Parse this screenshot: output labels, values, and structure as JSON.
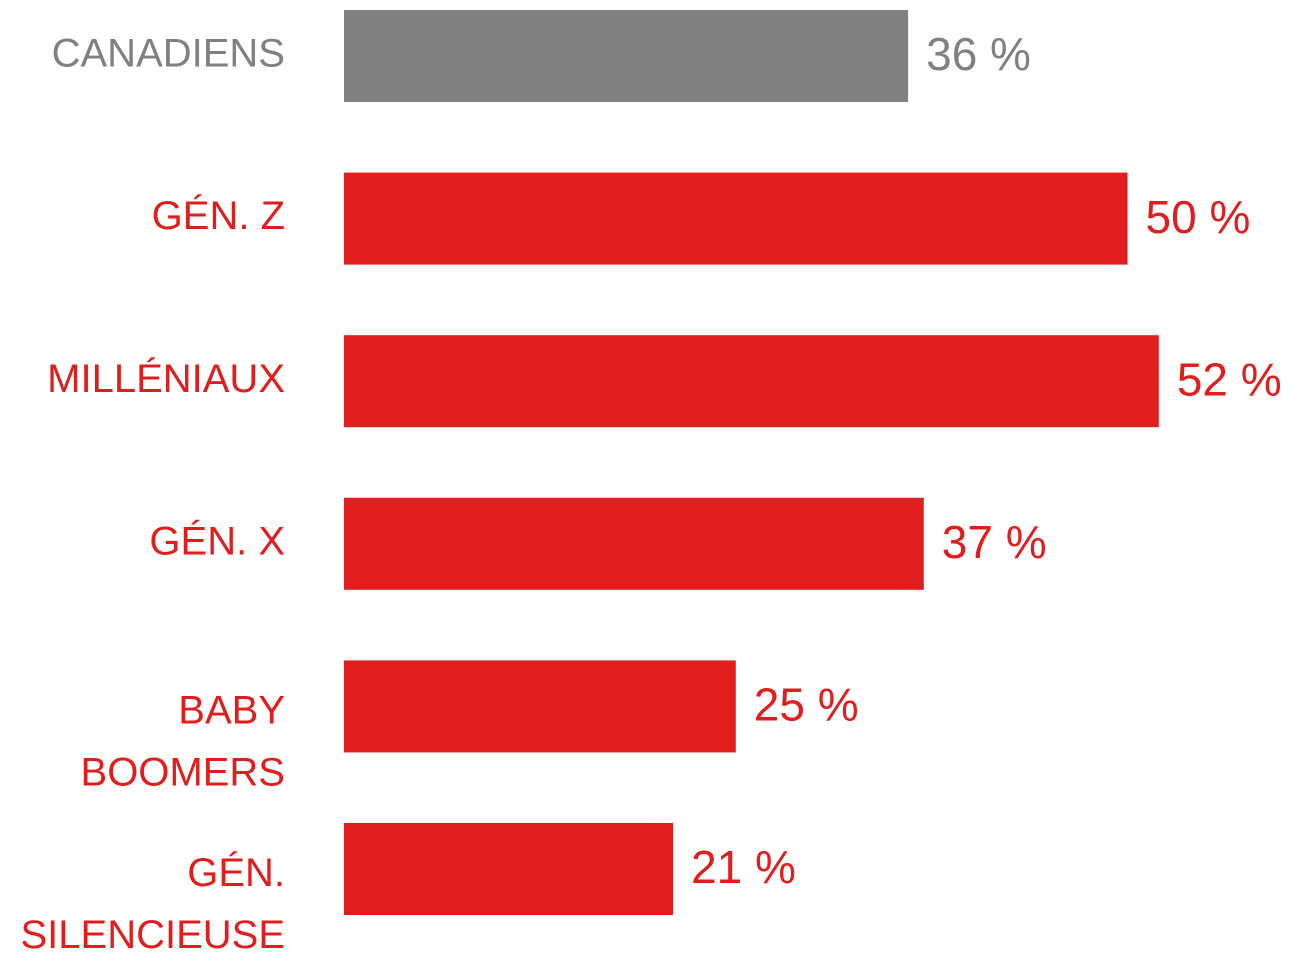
{
  "chart_data": {
    "type": "bar",
    "orientation": "horizontal",
    "categories": [
      "CANADIENS",
      "GÉN. Z",
      "MILLÉNIAUX",
      "GÉN. X",
      "BABY BOOMERS",
      "GÉN. SILENCIEUSE"
    ],
    "values": [
      36,
      50,
      52,
      37,
      25,
      21
    ],
    "value_labels": [
      "36 %",
      "50 %",
      "52 %",
      "37 %",
      "25 %",
      "21 %"
    ],
    "colors": [
      "#808080",
      "#e01e1e",
      "#e01e1e",
      "#e01e1e",
      "#e01e1e",
      "#e01e1e"
    ]
  }
}
